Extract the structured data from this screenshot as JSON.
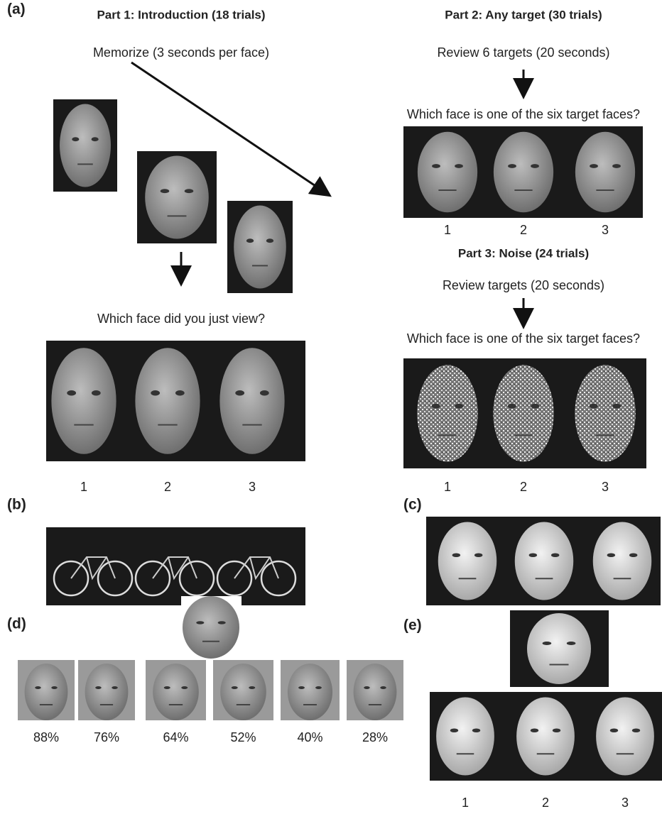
{
  "panels": {
    "a": {
      "label": "(a)",
      "part1": {
        "title": "Part 1: Introduction (18 trials)",
        "instruction": "Memorize (3 seconds per face)",
        "question": "Which face did you just view?",
        "options": [
          "1",
          "2",
          "3"
        ]
      },
      "part2": {
        "title": "Part 2: Any target (30 trials)",
        "instruction": "Review 6 targets (20 seconds)",
        "question": "Which face is one of the six target faces?",
        "options": [
          "1",
          "2",
          "3"
        ]
      },
      "part3": {
        "title": "Part 3: Noise (24 trials)",
        "instruction": "Review targets (20 seconds)",
        "question": "Which face is one of the six target faces?",
        "options": [
          "1",
          "2",
          "3"
        ]
      }
    },
    "b": {
      "label": "(b)"
    },
    "c": {
      "label": "(c)"
    },
    "d": {
      "label": "(d)",
      "percentages": [
        "88%",
        "76%",
        "64%",
        "52%",
        "40%",
        "28%"
      ]
    },
    "e": {
      "label": "(e)",
      "options": [
        "1",
        "2",
        "3"
      ]
    }
  }
}
